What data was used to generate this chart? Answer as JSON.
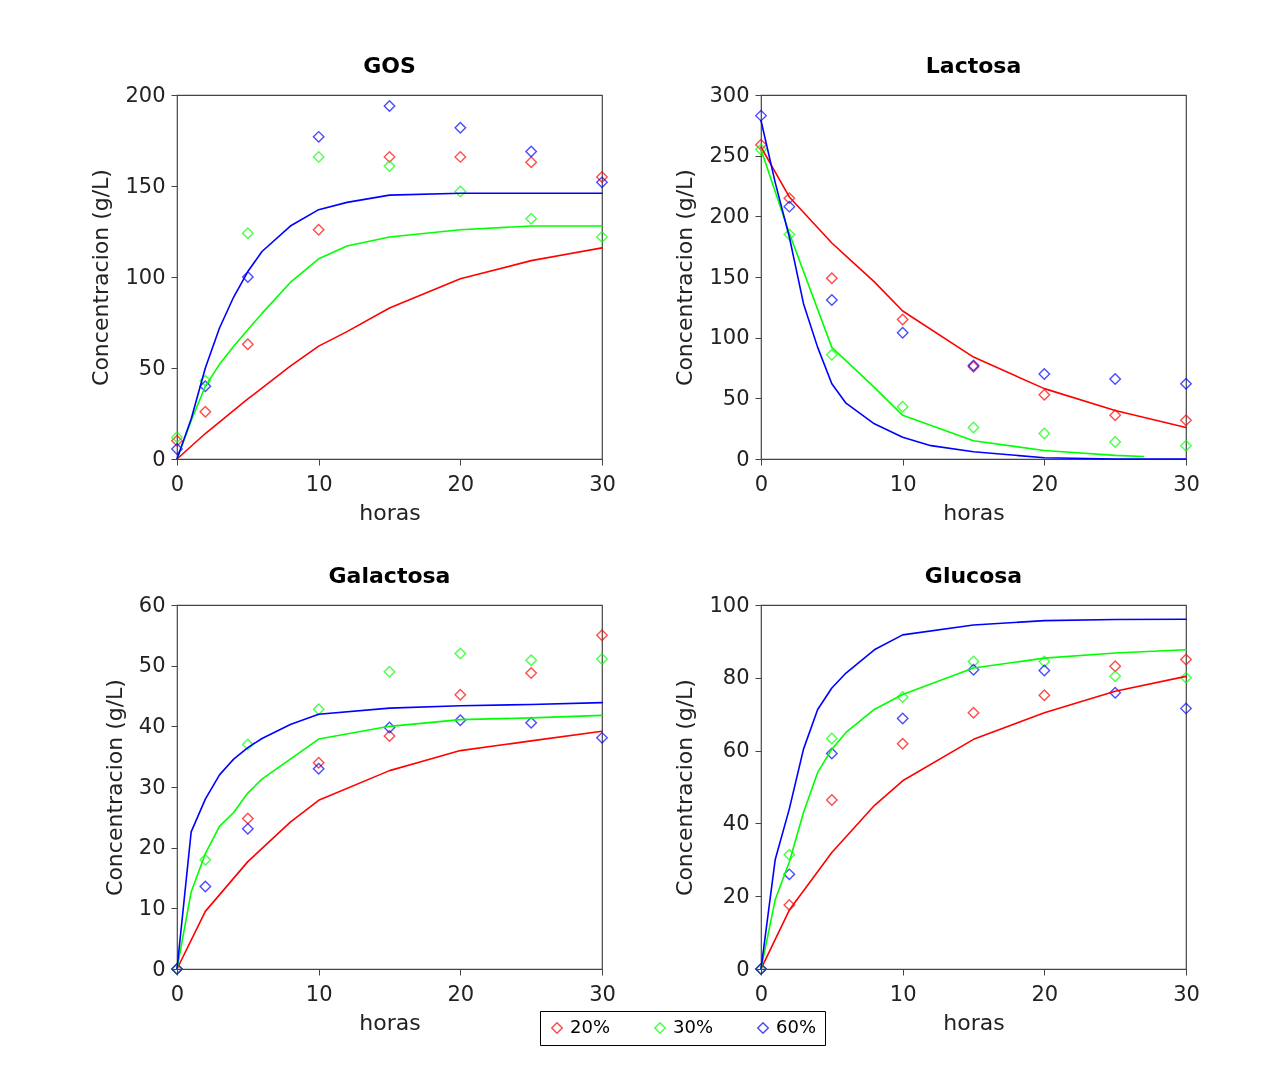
{
  "chart_data": [
    {
      "type": "scatter",
      "title": "GOS",
      "xlabel": "horas",
      "ylabel": "Concentracion (g/L)",
      "xlim": [
        0,
        30
      ],
      "xticks": [
        0,
        10,
        20,
        30
      ],
      "ylim": [
        0,
        200
      ],
      "yticks": [
        0,
        50,
        100,
        150,
        200
      ],
      "marker": "diamond",
      "series": [
        {
          "color": "#ff0000",
          "x": [
            0,
            2,
            5,
            10,
            15,
            20,
            25,
            30
          ],
          "values": [
            10,
            26,
            63,
            126,
            166,
            166,
            163,
            155
          ]
        },
        {
          "color": "#00ff00",
          "x": [
            0,
            2,
            5,
            10,
            15,
            20,
            25,
            30
          ],
          "values": [
            12,
            43,
            124,
            166,
            161,
            147,
            132,
            122
          ]
        },
        {
          "color": "#0000ff",
          "x": [
            0,
            2,
            5,
            10,
            15,
            20,
            25,
            30
          ],
          "values": [
            5.5,
            40,
            100,
            177,
            194,
            182,
            169,
            152
          ]
        },
        {
          "type": "line",
          "marker": "none",
          "color": "#ff0000",
          "x": [
            0,
            2,
            5,
            8,
            10,
            12,
            15,
            20,
            25,
            30
          ],
          "values": [
            0,
            14,
            33,
            51,
            62,
            70,
            83,
            99,
            109,
            116
          ]
        },
        {
          "type": "line",
          "marker": "none",
          "color": "#00ff00",
          "x": [
            0,
            1,
            2,
            3,
            4,
            5,
            6,
            8,
            10,
            12,
            15,
            20,
            25,
            30
          ],
          "values": [
            0,
            21,
            40,
            52,
            62,
            71,
            80,
            97,
            110,
            117,
            122,
            126,
            128,
            128
          ]
        },
        {
          "type": "line",
          "marker": "none",
          "color": "#0000ff",
          "x": [
            0,
            1,
            2,
            3,
            4,
            5,
            6,
            8,
            10,
            12,
            15,
            20,
            25,
            30
          ],
          "values": [
            0,
            22,
            50,
            72,
            89,
            103,
            114,
            128,
            137,
            141,
            145,
            146,
            146,
            146
          ]
        }
      ]
    },
    {
      "type": "scatter",
      "title": "Lactosa",
      "xlabel": "horas",
      "ylabel": "Concentracion (g/L)",
      "xlim": [
        0,
        30
      ],
      "xticks": [
        0,
        10,
        20,
        30
      ],
      "ylim": [
        0,
        300
      ],
      "yticks": [
        0,
        50,
        100,
        150,
        200,
        250,
        300
      ],
      "marker": "diamond",
      "series": [
        {
          "color": "#ff0000",
          "x": [
            0,
            2,
            5,
            10,
            15,
            20,
            25,
            30
          ],
          "values": [
            259,
            215,
            149,
            115,
            76,
            53,
            36,
            32
          ]
        },
        {
          "color": "#00ff00",
          "x": [
            0,
            2,
            5,
            10,
            15,
            20,
            25,
            30
          ],
          "values": [
            255,
            185,
            86,
            43,
            26,
            21,
            14,
            11
          ]
        },
        {
          "color": "#0000ff",
          "x": [
            0,
            2,
            5,
            10,
            15,
            20,
            25,
            30
          ],
          "values": [
            283,
            208,
            131,
            104,
            77,
            70,
            66,
            62
          ]
        },
        {
          "type": "line",
          "marker": "none",
          "color": "#ff0000",
          "x": [
            0,
            2,
            5,
            8,
            10,
            15,
            20,
            25,
            30
          ],
          "values": [
            257,
            216,
            178,
            146,
            122,
            84,
            58,
            40,
            26
          ]
        },
        {
          "type": "line",
          "marker": "none",
          "color": "#00ff00",
          "x": [
            0,
            2,
            5,
            8,
            10,
            15,
            20,
            25,
            27
          ],
          "values": [
            255,
            186,
            92,
            59,
            36,
            15,
            7,
            3,
            2
          ]
        },
        {
          "type": "line",
          "marker": "none",
          "color": "#0000ff",
          "x": [
            0,
            1,
            2,
            3,
            4,
            5,
            6,
            8,
            10,
            12,
            15,
            20,
            25,
            30
          ],
          "values": [
            279,
            228,
            183,
            128,
            92,
            62,
            46,
            29,
            18,
            11,
            6,
            1,
            0,
            0
          ]
        }
      ]
    },
    {
      "type": "scatter",
      "title": "Galactosa",
      "xlabel": "horas",
      "ylabel": "Concentracion (g/L)",
      "xlim": [
        0,
        30
      ],
      "xticks": [
        0,
        10,
        20,
        30
      ],
      "ylim": [
        0,
        60
      ],
      "yticks": [
        0,
        10,
        20,
        30,
        40,
        50,
        60
      ],
      "marker": "diamond",
      "legend": "bottom",
      "series": [
        {
          "name": "20%",
          "color": "#ff0000",
          "x": [
            0,
            2,
            5,
            10,
            15,
            20,
            25,
            30
          ],
          "values": [
            0,
            null,
            24.8,
            34,
            38.4,
            45.2,
            48.8,
            55
          ]
        },
        {
          "name": "30%",
          "color": "#00ff00",
          "x": [
            0,
            2,
            5,
            10,
            15,
            20,
            25,
            30
          ],
          "values": [
            0,
            18,
            37,
            42.8,
            49,
            52,
            50.9,
            51.1
          ]
        },
        {
          "name": "60%",
          "color": "#0000ff",
          "x": [
            0,
            2,
            5,
            10,
            15,
            20,
            25,
            30
          ],
          "values": [
            0,
            13.6,
            23.1,
            33,
            39.8,
            41,
            40.6,
            38.1
          ]
        },
        {
          "type": "line",
          "marker": "none",
          "color": "#ff0000",
          "x": [
            0,
            2,
            5,
            8,
            10,
            15,
            20,
            25,
            30
          ],
          "values": [
            0,
            9.5,
            17.7,
            24.2,
            27.8,
            32.7,
            36,
            37.6,
            39.2
          ]
        },
        {
          "type": "line",
          "marker": "none",
          "color": "#00ff00",
          "x": [
            0,
            1,
            2,
            3,
            4,
            5,
            6,
            8,
            10,
            15,
            20,
            25,
            30
          ],
          "values": [
            0,
            12.7,
            19,
            23.5,
            25.8,
            29,
            31.3,
            34.6,
            37.9,
            40,
            41.1,
            41.4,
            41.8
          ]
        },
        {
          "type": "line",
          "marker": "none",
          "color": "#0000ff",
          "x": [
            0,
            1,
            2,
            3,
            4,
            5,
            6,
            8,
            10,
            15,
            20,
            25,
            30
          ],
          "values": [
            0,
            22.6,
            28,
            32,
            34.6,
            36.5,
            38,
            40.3,
            42,
            43,
            43.4,
            43.6,
            43.9
          ]
        }
      ]
    },
    {
      "type": "scatter",
      "title": "Glucosa",
      "xlabel": "horas",
      "ylabel": "Concentracion (g/L)",
      "xlim": [
        0,
        30
      ],
      "xticks": [
        0,
        10,
        20,
        30
      ],
      "ylim": [
        0,
        100
      ],
      "yticks": [
        0,
        20,
        40,
        60,
        80,
        100
      ],
      "marker": "diamond",
      "series": [
        {
          "color": "#ff0000",
          "x": [
            0,
            2,
            5,
            10,
            15,
            20,
            25,
            30
          ],
          "values": [
            0,
            17.6,
            46.4,
            61.9,
            70.4,
            75.2,
            83.2,
            85
          ]
        },
        {
          "color": "#00ff00",
          "x": [
            0,
            2,
            5,
            10,
            15,
            20,
            25,
            30
          ],
          "values": [
            0,
            31.4,
            63.3,
            74.7,
            84.5,
            84.5,
            80.4,
            80
          ]
        },
        {
          "color": "#0000ff",
          "x": [
            0,
            2,
            5,
            10,
            15,
            20,
            25,
            30
          ],
          "values": [
            0,
            26,
            59.2,
            68.8,
            82.2,
            82,
            75.9,
            71.6
          ]
        },
        {
          "type": "line",
          "marker": "none",
          "color": "#ff0000",
          "x": [
            0,
            2,
            5,
            8,
            10,
            15,
            20,
            25,
            30
          ],
          "values": [
            0,
            16.2,
            32,
            44.9,
            51.7,
            63.1,
            70.4,
            76.3,
            80.4
          ]
        },
        {
          "type": "line",
          "marker": "none",
          "color": "#00ff00",
          "x": [
            0,
            1,
            2,
            3,
            4,
            5,
            6,
            8,
            10,
            15,
            20,
            25,
            30
          ],
          "values": [
            0,
            19,
            29.4,
            43,
            54,
            60.4,
            65,
            71.3,
            75.4,
            82.7,
            85.4,
            86.8,
            87.7
          ]
        },
        {
          "type": "line",
          "marker": "none",
          "color": "#0000ff",
          "x": [
            0,
            1,
            2,
            3,
            4,
            5,
            6,
            8,
            10,
            15,
            20,
            25,
            30
          ],
          "values": [
            0,
            30,
            44,
            60.4,
            71.3,
            77.2,
            81.3,
            87.7,
            91.8,
            94.5,
            95.7,
            96,
            96.1
          ]
        }
      ]
    }
  ]
}
